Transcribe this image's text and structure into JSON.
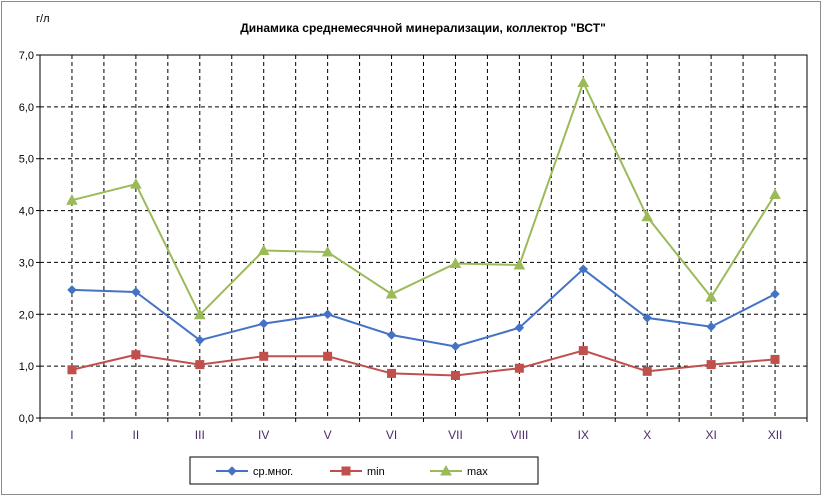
{
  "chart_data": {
    "type": "line",
    "title": "Динамика среднемесячной минерализации, коллектор \"ВСТ\"",
    "ylabel": "г/л",
    "xlabel": "",
    "ylim": [
      0,
      7
    ],
    "yticks": [
      "0,0",
      "1,0",
      "2,0",
      "3,0",
      "4,0",
      "5,0",
      "6,0",
      "7,0"
    ],
    "categories": [
      "I",
      "II",
      "III",
      "IV",
      "V",
      "VI",
      "VII",
      "VIII",
      "IX",
      "X",
      "XI",
      "XII"
    ],
    "grid": true,
    "legend_position": "bottom",
    "series": [
      {
        "name": "ср.мног.",
        "color": "#4472c4",
        "marker": "diamond",
        "values": [
          2.47,
          2.43,
          1.5,
          1.82,
          2.0,
          1.6,
          1.38,
          1.74,
          2.87,
          1.93,
          1.76,
          2.39
        ]
      },
      {
        "name": "min",
        "color": "#c0504d",
        "marker": "square",
        "values": [
          0.93,
          1.22,
          1.03,
          1.19,
          1.19,
          0.86,
          0.82,
          0.96,
          1.3,
          0.9,
          1.03,
          1.13
        ]
      },
      {
        "name": "max",
        "color": "#9bbb59",
        "marker": "triangle",
        "values": [
          4.2,
          4.51,
          1.99,
          3.23,
          3.2,
          2.39,
          2.98,
          2.95,
          6.47,
          3.88,
          2.33,
          4.31
        ]
      }
    ]
  }
}
